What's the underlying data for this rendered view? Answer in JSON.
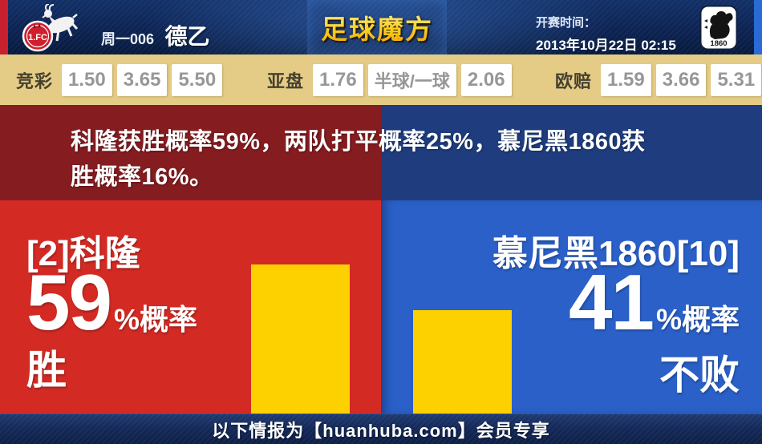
{
  "header": {
    "match_label": "周一006",
    "league": "德乙",
    "site_logo": "足球魔方",
    "kickoff_label": "开赛时间：",
    "kickoff_time": "2013年10月22日 02:15",
    "home_crest_text": "1.FC",
    "away_crest_year": "1860"
  },
  "odds_bar": {
    "jingcai": {
      "label": "竞彩",
      "values": [
        "1.50",
        "3.65",
        "5.50"
      ]
    },
    "yapan": {
      "label": "亚盘",
      "values": [
        "1.76",
        "半球/一球",
        "2.06"
      ]
    },
    "oupei": {
      "label": "欧赔",
      "values": [
        "1.59",
        "3.66",
        "5.31"
      ]
    }
  },
  "summary": {
    "text": "科隆获胜概率59%，两队打平概率25%，慕尼黑1860获胜概率16%。"
  },
  "prediction": {
    "home": {
      "team": "[2]科隆",
      "percent": "59",
      "suffix": "%概率",
      "outcome": "胜"
    },
    "away": {
      "team": "慕尼黑1860[10]",
      "percent": "41",
      "suffix": "%概率",
      "outcome": "不败"
    }
  },
  "footer": {
    "text": "以下情报为【huanhuba.com】会员专享"
  },
  "colors": {
    "header_navy": "#0c2352",
    "left_edge_red": "#c8202f",
    "right_edge_blue": "#2a6ad4",
    "odds_tan": "#e5cc86",
    "summary_red": "#851c20",
    "summary_blue": "#1e3c7e",
    "panel_red": "#d42a24",
    "panel_blue": "#2a60c8",
    "bar_yellow": "#fdd100"
  }
}
